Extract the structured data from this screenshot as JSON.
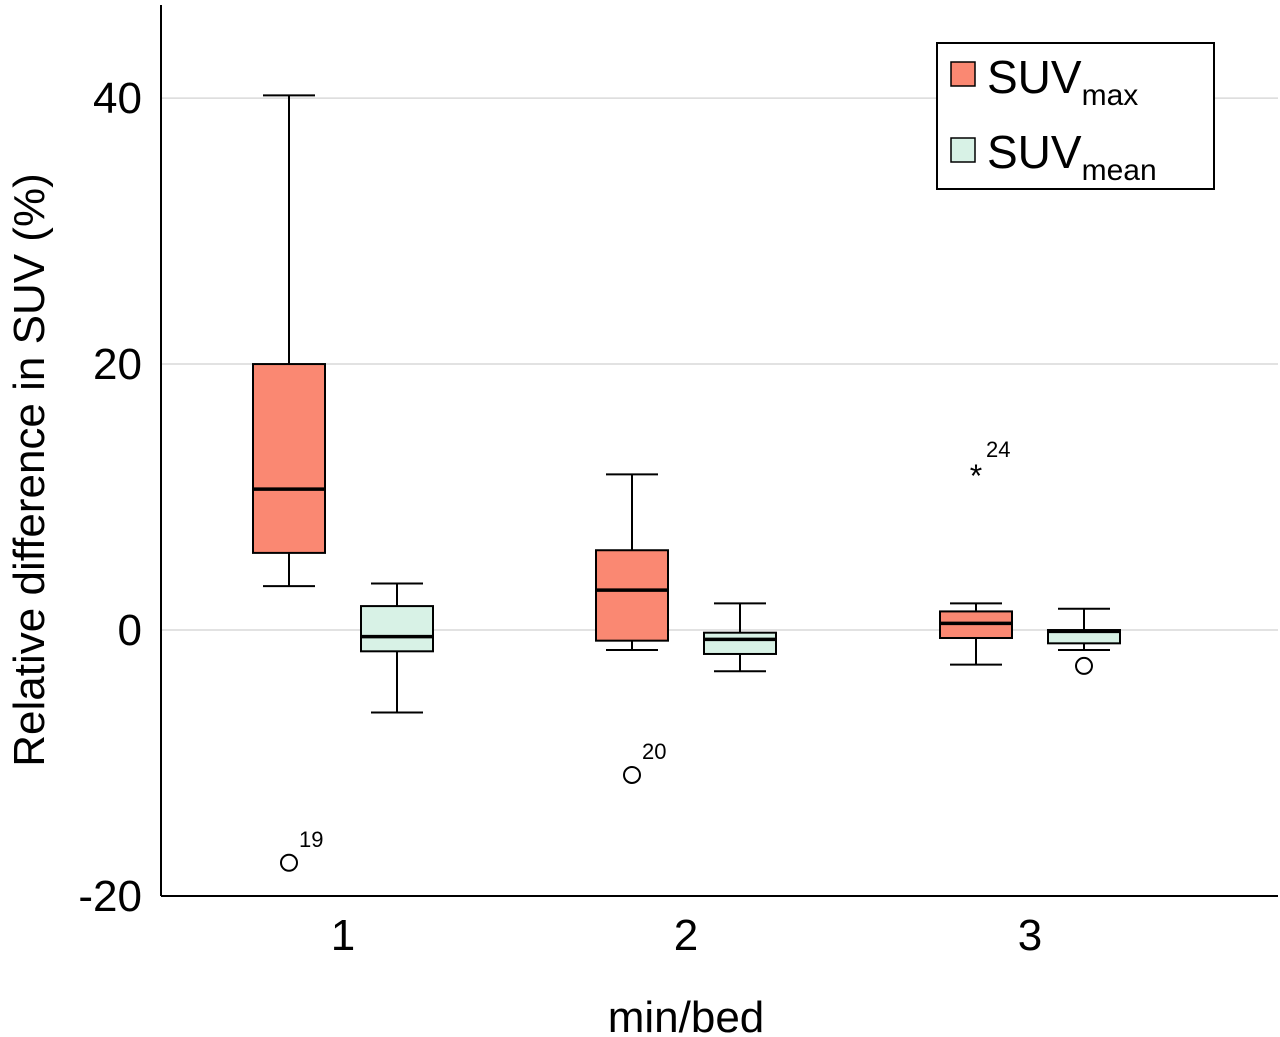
{
  "chart_data": {
    "type": "box",
    "xlabel": "min/bed",
    "ylabel": "Relative difference in SUV (%)",
    "categories": [
      "1",
      "2",
      "3"
    ],
    "ylim": [
      -20,
      47
    ],
    "yticks": [
      -20,
      0,
      20,
      40
    ],
    "grid": true,
    "legend_position": "top-right",
    "series": [
      {
        "name_main": "SUV",
        "name_sub": "max",
        "color": "#fa8872",
        "boxes": [
          {
            "whisker_low": 3.3,
            "q1": 5.8,
            "median": 10.6,
            "q3": 20.0,
            "whisker_high": 40.2
          },
          {
            "whisker_low": -1.5,
            "q1": -0.8,
            "median": 3.0,
            "q3": 6.0,
            "whisker_high": 11.7
          },
          {
            "whisker_low": -2.6,
            "q1": -0.6,
            "median": 0.5,
            "q3": 1.4,
            "whisker_high": 2.0
          }
        ],
        "outliers": [
          {
            "category": "1",
            "value": -17.5,
            "marker": "circle",
            "label": "19"
          },
          {
            "category": "2",
            "value": -10.9,
            "marker": "circle",
            "label": "20"
          },
          {
            "category": "3",
            "value": 11.8,
            "marker": "star",
            "label": "24"
          }
        ]
      },
      {
        "name_main": "SUV",
        "name_sub": "mean",
        "color": "#d8f2e6",
        "boxes": [
          {
            "whisker_low": -6.2,
            "q1": -1.6,
            "median": -0.5,
            "q3": 1.8,
            "whisker_high": 3.5
          },
          {
            "whisker_low": -3.1,
            "q1": -1.8,
            "median": -0.7,
            "q3": -0.2,
            "whisker_high": 2.0
          },
          {
            "whisker_low": -1.5,
            "q1": -1.0,
            "median": -0.1,
            "q3": 0.0,
            "whisker_high": 1.6
          }
        ],
        "outliers": [
          {
            "category": "3",
            "value": -2.7,
            "marker": "circle",
            "label": ""
          }
        ]
      }
    ]
  }
}
